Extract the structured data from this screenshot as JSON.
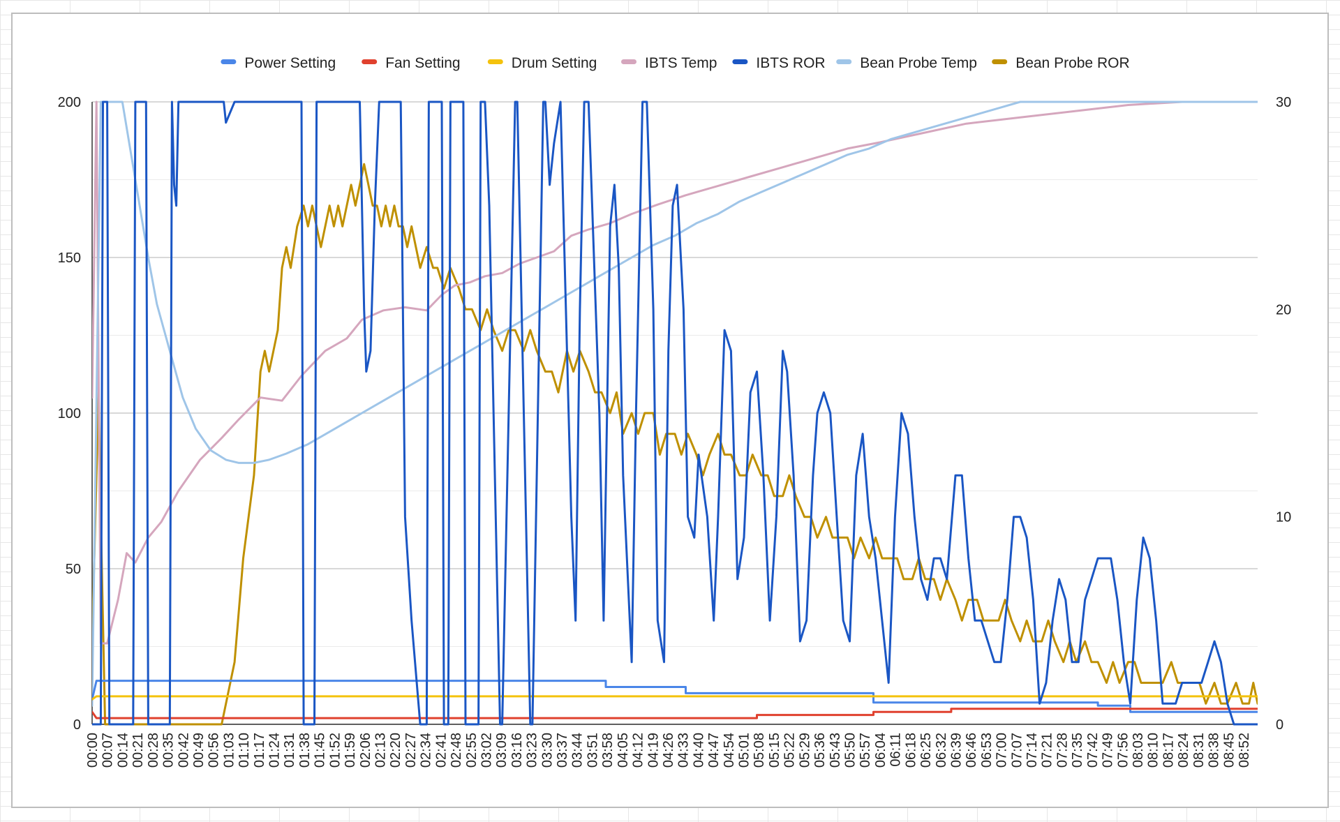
{
  "chart_data": {
    "type": "line",
    "title": "",
    "xlabel": "",
    "ylabel": "",
    "ylim": [
      0,
      200
    ],
    "y2lim": [
      0,
      30
    ],
    "yticks": [
      0,
      50,
      100,
      150,
      200
    ],
    "y2ticks": [
      0,
      10,
      20,
      30
    ],
    "grid": true,
    "legend_position": "top",
    "x_tick_labels": [
      "00:00",
      "00:07",
      "00:14",
      "00:21",
      "00:28",
      "00:35",
      "00:42",
      "00:49",
      "00:56",
      "01:03",
      "01:10",
      "01:17",
      "01:24",
      "01:31",
      "01:38",
      "01:45",
      "01:52",
      "01:59",
      "02:06",
      "02:13",
      "02:20",
      "02:27",
      "02:34",
      "02:41",
      "02:48",
      "02:55",
      "03:02",
      "03:09",
      "03:16",
      "03:23",
      "03:30",
      "03:37",
      "03:44",
      "03:51",
      "03:58",
      "04:05",
      "04:12",
      "04:19",
      "04:26",
      "04:33",
      "04:40",
      "04:47",
      "04:54",
      "05:01",
      "05:08",
      "05:15",
      "05:22",
      "05:29",
      "05:36",
      "05:43",
      "05:50",
      "05:57",
      "06:04",
      "06:11",
      "06:18",
      "06:25",
      "06:32",
      "06:39",
      "06:46",
      "06:53",
      "07:00",
      "07:07",
      "07:14",
      "07:21",
      "07:28",
      "07:35",
      "07:42",
      "07:49",
      "07:56",
      "08:03",
      "08:10",
      "08:17",
      "08:24",
      "08:31",
      "08:38",
      "08:45",
      "08:52"
    ],
    "x_range_seconds": [
      0,
      540
    ],
    "series": [
      {
        "name": "Power Setting",
        "color": "#4a86e8",
        "axis": "left",
        "x": [
          0,
          2,
          238,
          238,
          275,
          275,
          362,
          362,
          466,
          466,
          481,
          481,
          540
        ],
        "y": [
          8,
          14,
          14,
          12,
          12,
          10,
          10,
          7,
          7,
          6,
          6,
          4,
          4
        ]
      },
      {
        "name": "Fan Setting",
        "color": "#e0412e",
        "axis": "left",
        "x": [
          0,
          2,
          308,
          308,
          362,
          362,
          398,
          398,
          481,
          481,
          540
        ],
        "y": [
          4,
          2,
          2,
          3,
          3,
          4,
          4,
          5,
          5,
          5,
          5
        ]
      },
      {
        "name": "Drum Setting",
        "color": "#f4c20d",
        "axis": "left",
        "x": [
          0,
          2,
          540
        ],
        "y": [
          8,
          9,
          9
        ]
      },
      {
        "name": "IBTS Temp",
        "color": "#d5a6bd",
        "axis": "left",
        "x": [
          0,
          2,
          4,
          7,
          12,
          16,
          20,
          26,
          32,
          40,
          50,
          60,
          68,
          78,
          88,
          97,
          108,
          118,
          125,
          135,
          145,
          155,
          162,
          168,
          175,
          182,
          190,
          198,
          206,
          214,
          222,
          230,
          240,
          250,
          262,
          275,
          290,
          305,
          320,
          335,
          350,
          365,
          385,
          405,
          430,
          455,
          480,
          505,
          540
        ],
        "y": [
          105,
          200,
          26,
          26,
          40,
          55,
          52,
          60,
          65,
          75,
          85,
          92,
          98,
          105,
          104,
          112,
          120,
          124,
          130,
          133,
          134,
          133,
          138,
          141,
          142,
          144,
          145,
          148,
          150,
          152,
          157,
          159,
          161,
          164,
          167,
          170,
          173,
          176,
          179,
          182,
          185,
          187,
          190,
          193,
          195,
          197,
          199,
          200,
          200
        ]
      },
      {
        "name": "IBTS ROR",
        "color": "#1a56c4",
        "axis": "right",
        "x": [
          0,
          4,
          5,
          7,
          8,
          19,
          20,
          25,
          26,
          36,
          37,
          38,
          39,
          40,
          41,
          61,
          62,
          66,
          68,
          97,
          98,
          103,
          104,
          124,
          126,
          127,
          129,
          131,
          133,
          143,
          145,
          148,
          152,
          155,
          156,
          162,
          163,
          165,
          166,
          172,
          173,
          179,
          180,
          182,
          184,
          189,
          190,
          196,
          197,
          203,
          204,
          209,
          210,
          212,
          214,
          217,
          222,
          224,
          226,
          228,
          230,
          235,
          237,
          240,
          242,
          244,
          246,
          250,
          252,
          255,
          257,
          260,
          262,
          265,
          267,
          269,
          271,
          274,
          276,
          279,
          281,
          285,
          288,
          290,
          293,
          296,
          299,
          302,
          305,
          308,
          311,
          314,
          317,
          320,
          322,
          325,
          328,
          331,
          334,
          336,
          339,
          342,
          345,
          348,
          351,
          354,
          357,
          360,
          363,
          366,
          369,
          372,
          375,
          378,
          381,
          384,
          387,
          390,
          393,
          396,
          400,
          403,
          406,
          409,
          412,
          415,
          418,
          421,
          424,
          427,
          430,
          433,
          436,
          439,
          442,
          445,
          448,
          451,
          454,
          457,
          460,
          463,
          466,
          469,
          472,
          475,
          478,
          481,
          484,
          487,
          490,
          493,
          496,
          499,
          502,
          505,
          508,
          511,
          514,
          517,
          520,
          523,
          526,
          529,
          532,
          535,
          538,
          540
        ],
        "y": [
          0,
          0,
          30,
          30,
          0,
          0,
          30,
          30,
          0,
          0,
          30,
          26,
          25,
          30,
          30,
          30,
          29,
          30,
          30,
          30,
          0,
          0,
          30,
          30,
          20,
          17,
          18,
          25,
          30,
          30,
          10,
          5,
          0,
          0,
          30,
          30,
          0,
          0,
          30,
          30,
          0,
          0,
          30,
          30,
          25,
          0,
          0,
          30,
          30,
          0,
          0,
          30,
          30,
          26,
          28,
          30,
          10,
          5,
          20,
          30,
          30,
          15,
          5,
          24,
          26,
          22,
          12,
          3,
          15,
          30,
          30,
          20,
          5,
          3,
          18,
          25,
          26,
          20,
          10,
          9,
          13,
          10,
          5,
          10,
          19,
          18,
          7,
          9,
          16,
          17,
          12,
          5,
          10,
          18,
          17,
          12,
          4,
          5,
          12,
          15,
          16,
          15,
          10,
          5,
          4,
          12,
          14,
          10,
          8,
          5,
          2,
          10,
          15,
          14,
          10,
          7,
          6,
          8,
          8,
          7,
          12,
          12,
          8,
          5,
          5,
          4,
          3,
          3,
          6,
          10,
          10,
          9,
          6,
          1,
          2,
          5,
          7,
          6,
          3,
          3,
          6,
          7,
          8,
          8,
          8,
          6,
          3,
          1,
          6,
          9,
          8,
          5,
          1,
          1,
          1,
          2,
          2,
          2,
          2,
          3,
          4,
          3,
          1,
          0,
          0,
          0,
          0,
          0
        ]
      },
      {
        "name": "Bean Probe Temp",
        "color": "#9fc5e8",
        "axis": "left",
        "x": [
          0,
          4,
          7,
          10,
          14,
          20,
          26,
          30,
          36,
          42,
          48,
          55,
          62,
          68,
          75,
          82,
          90,
          100,
          110,
          120,
          130,
          140,
          150,
          160,
          170,
          180,
          190,
          200,
          210,
          220,
          230,
          240,
          250,
          260,
          270,
          280,
          290,
          300,
          310,
          320,
          330,
          340,
          350,
          360,
          370,
          380,
          390,
          400,
          410,
          420,
          430,
          440,
          450,
          460,
          470,
          480,
          490,
          500,
          540
        ],
        "y": [
          6,
          200,
          200,
          200,
          200,
          175,
          150,
          135,
          120,
          105,
          95,
          88,
          85,
          84,
          84,
          85,
          87,
          90,
          94,
          98,
          102,
          106,
          110,
          114,
          118,
          122,
          126,
          130,
          134,
          138,
          142,
          146,
          150,
          154,
          157,
          161,
          164,
          168,
          171,
          174,
          177,
          180,
          183,
          185,
          188,
          190,
          192,
          194,
          196,
          198,
          200,
          200,
          200,
          200,
          200,
          200,
          200,
          200,
          200
        ]
      },
      {
        "name": "Bean Probe ROR",
        "color": "#bf9000",
        "axis": "right",
        "x": [
          0,
          2,
          3,
          4,
          6,
          7,
          8,
          60,
          66,
          70,
          75,
          78,
          80,
          82,
          84,
          86,
          88,
          90,
          92,
          95,
          98,
          100,
          102,
          104,
          106,
          108,
          110,
          112,
          114,
          116,
          118,
          120,
          122,
          124,
          126,
          128,
          130,
          132,
          134,
          136,
          138,
          140,
          142,
          144,
          146,
          148,
          150,
          152,
          155,
          158,
          160,
          163,
          166,
          170,
          173,
          176,
          180,
          183,
          186,
          190,
          193,
          196,
          200,
          203,
          206,
          210,
          213,
          216,
          220,
          223,
          226,
          230,
          233,
          236,
          240,
          243,
          246,
          250,
          253,
          256,
          260,
          263,
          266,
          270,
          273,
          276,
          280,
          283,
          286,
          290,
          293,
          296,
          300,
          303,
          306,
          310,
          313,
          316,
          320,
          323,
          326,
          330,
          333,
          336,
          340,
          343,
          346,
          350,
          353,
          356,
          360,
          363,
          366,
          370,
          373,
          376,
          380,
          383,
          386,
          390,
          393,
          396,
          400,
          403,
          406,
          410,
          413,
          416,
          420,
          423,
          426,
          430,
          433,
          436,
          440,
          443,
          446,
          450,
          453,
          456,
          460,
          463,
          466,
          470,
          473,
          476,
          480,
          483,
          486,
          490,
          493,
          496,
          500,
          503,
          506,
          510,
          513,
          516,
          520,
          523,
          526,
          530,
          533,
          536,
          538,
          540
        ],
        "y": [
          4,
          12,
          16,
          10,
          0,
          0,
          0,
          0,
          3,
          8,
          12,
          17,
          18,
          17,
          18,
          19,
          22,
          23,
          22,
          24,
          25,
          24,
          25,
          24,
          23,
          24,
          25,
          24,
          25,
          24,
          25,
          26,
          25,
          26,
          27,
          26,
          25,
          25,
          24,
          25,
          24,
          25,
          24,
          24,
          23,
          24,
          23,
          22,
          23,
          22,
          22,
          21,
          22,
          21,
          20,
          20,
          19,
          20,
          19,
          18,
          19,
          19,
          18,
          19,
          18,
          17,
          17,
          16,
          18,
          17,
          18,
          17,
          16,
          16,
          15,
          16,
          14,
          15,
          14,
          15,
          15,
          13,
          14,
          14,
          13,
          14,
          13,
          12,
          13,
          14,
          13,
          13,
          12,
          12,
          13,
          12,
          12,
          11,
          11,
          12,
          11,
          10,
          10,
          9,
          10,
          9,
          9,
          9,
          8,
          9,
          8,
          9,
          8,
          8,
          8,
          7,
          7,
          8,
          7,
          7,
          6,
          7,
          6,
          5,
          6,
          6,
          5,
          5,
          5,
          6,
          5,
          4,
          5,
          4,
          4,
          5,
          4,
          3,
          4,
          3,
          4,
          3,
          3,
          2,
          3,
          2,
          3,
          3,
          2,
          2,
          2,
          2,
          3,
          2,
          2,
          2,
          2,
          1,
          2,
          1,
          1,
          2,
          1,
          1,
          2,
          1
        ]
      }
    ]
  }
}
